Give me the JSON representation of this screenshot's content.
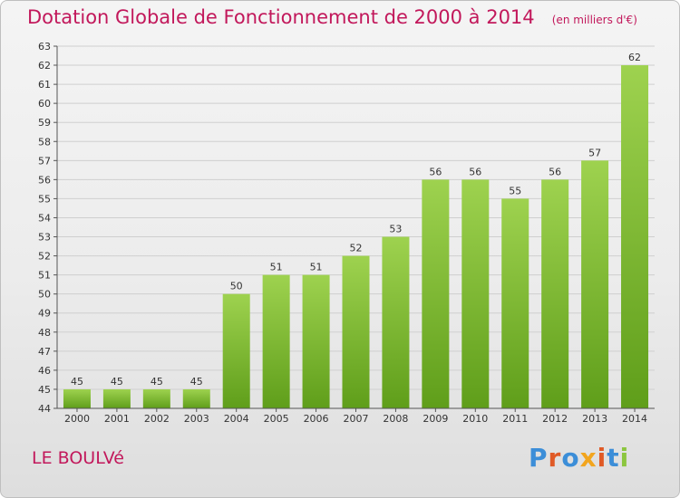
{
  "header": {
    "title": "Dotation Globale de Fonctionnement de 2000 à 2014",
    "unit": "(en milliers d'€)"
  },
  "footer": {
    "commune": "LE BOULVé",
    "logo": "Proxiti"
  },
  "colors": {
    "title": "#c2185b",
    "bar_top": "#9ed24f",
    "bar_bottom": "#5f9e1a",
    "grid": "#cfcfcf",
    "logo_letters": [
      "#3c8ed8",
      "#e05a26",
      "#3c8ed8",
      "#f2a51e",
      "#e05a26",
      "#3c8ed8",
      "#8cc63f"
    ]
  },
  "chart_data": {
    "type": "bar",
    "title": "Dotation Globale de Fonctionnement de 2000 à 2014",
    "subtitle": "(en milliers d'€)",
    "xlabel": "",
    "ylabel": "",
    "categories": [
      "2000",
      "2001",
      "2002",
      "2003",
      "2004",
      "2005",
      "2006",
      "2007",
      "2008",
      "2009",
      "2010",
      "2011",
      "2012",
      "2013",
      "2014"
    ],
    "values": [
      45,
      45,
      45,
      45,
      50,
      51,
      51,
      52,
      53,
      56,
      56,
      55,
      56,
      57,
      62
    ],
    "ylim": [
      44,
      63
    ],
    "yticks": [
      44,
      45,
      46,
      47,
      48,
      49,
      50,
      51,
      52,
      53,
      54,
      55,
      56,
      57,
      58,
      59,
      60,
      61,
      62,
      63
    ],
    "grid": true,
    "data_labels": true
  }
}
